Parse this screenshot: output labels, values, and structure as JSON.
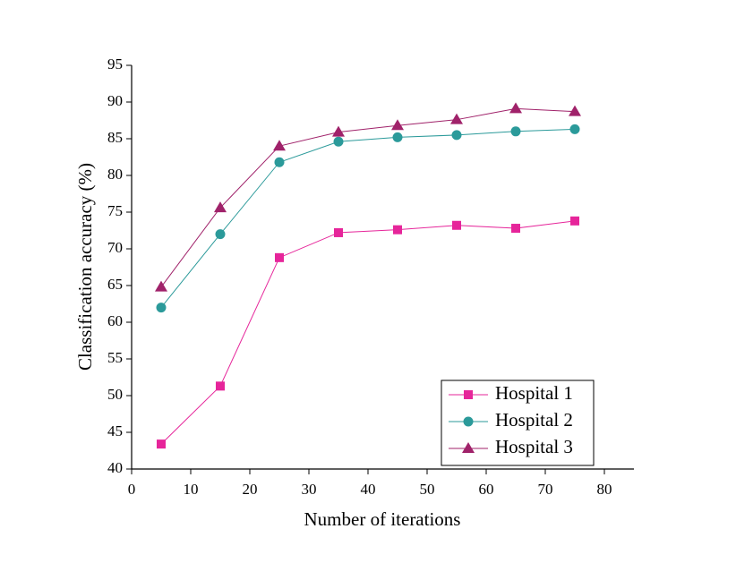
{
  "chart_data": {
    "type": "line",
    "x_label": "Number of iterations",
    "y_label": "Classification accuracy (%)",
    "xlim": [
      0,
      85
    ],
    "xticks": [
      0,
      10,
      20,
      30,
      40,
      50,
      60,
      70,
      80
    ],
    "ylim": [
      40,
      95
    ],
    "yticks": [
      40,
      45,
      50,
      55,
      60,
      65,
      70,
      75,
      80,
      85,
      90,
      95
    ],
    "legend": "lower right",
    "x": [
      5,
      15,
      25,
      35,
      45,
      55,
      65,
      75
    ],
    "series": [
      {
        "name": "Hospital 1",
        "color": "#e6259a",
        "marker": "square",
        "values": [
          43.4,
          51.3,
          68.8,
          72.2,
          72.6,
          73.2,
          72.8,
          73.8
        ]
      },
      {
        "name": "Hospital 2",
        "color": "#2b9a9a",
        "marker": "circle",
        "values": [
          62.0,
          72.0,
          81.8,
          84.6,
          85.2,
          85.5,
          86.0,
          86.3
        ]
      },
      {
        "name": "Hospital 3",
        "color": "#a0226a",
        "marker": "triangle",
        "values": [
          64.8,
          75.6,
          84.0,
          85.9,
          86.8,
          87.6,
          89.1,
          88.7
        ]
      }
    ]
  }
}
